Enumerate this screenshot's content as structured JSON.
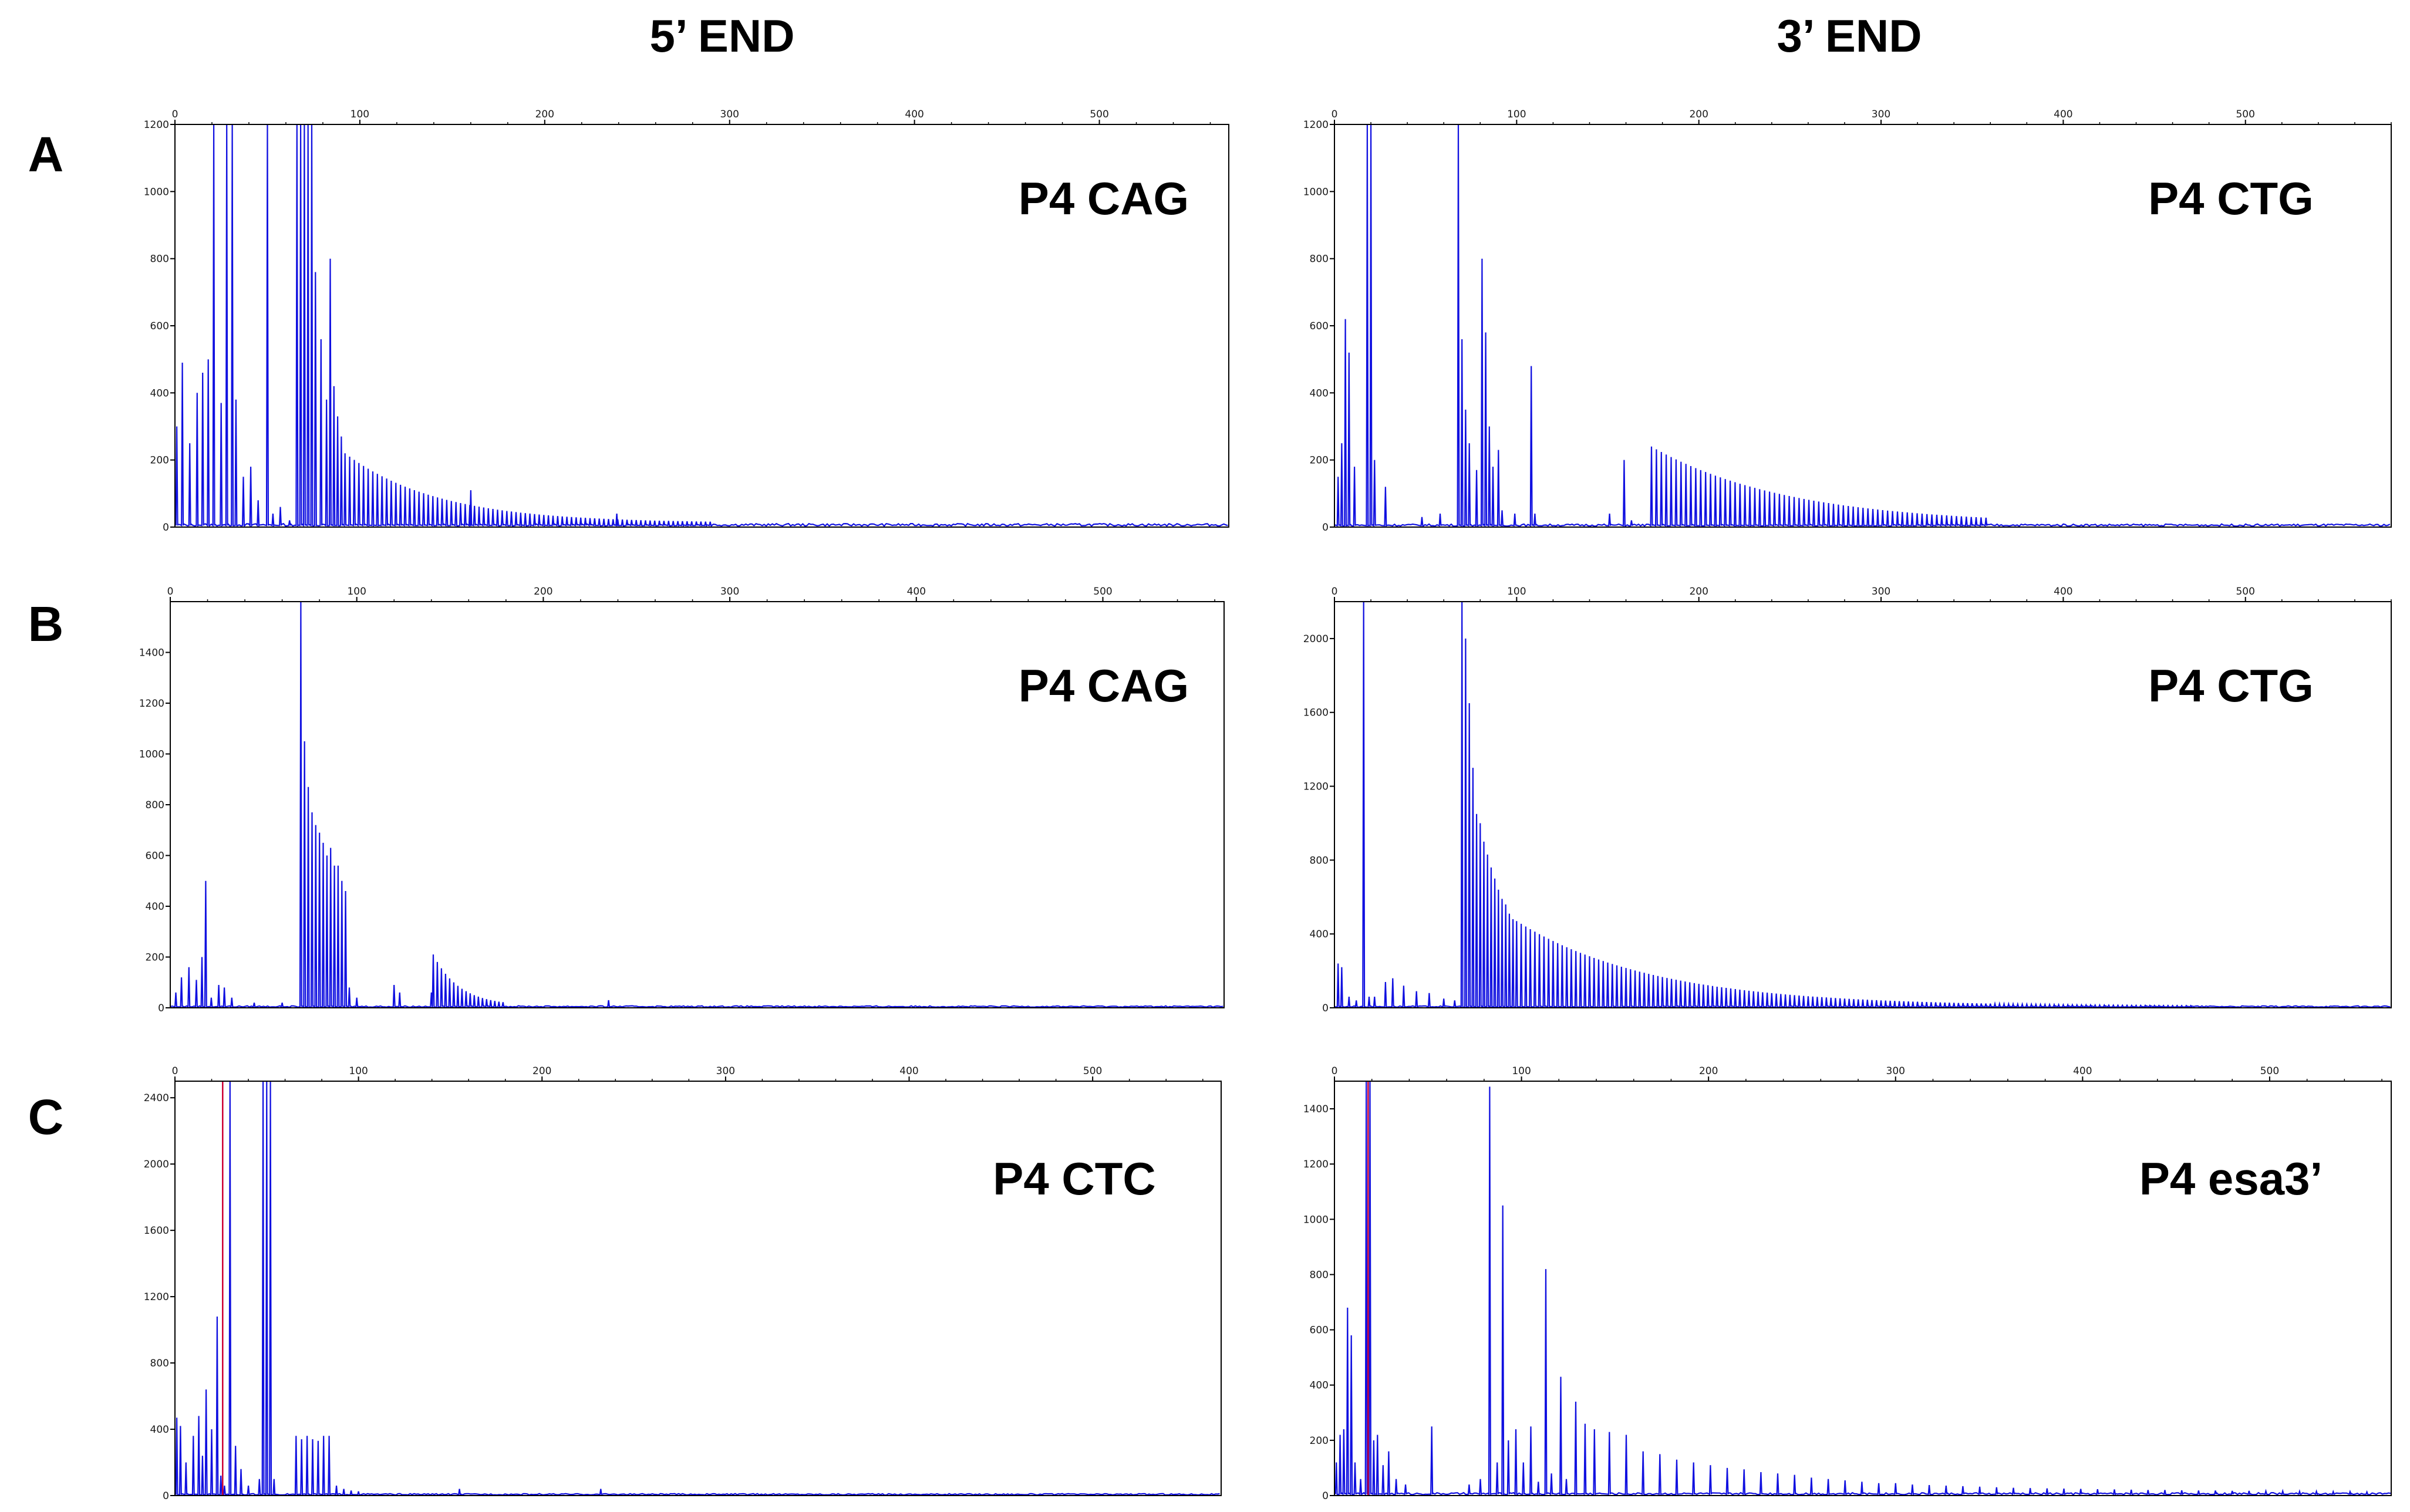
{
  "figure": {
    "column_headers": [
      "5’ END",
      "3’ END"
    ],
    "row_labels": [
      "A",
      "B",
      "C"
    ]
  },
  "colors": {
    "trace": "#1010e0",
    "marker": "#cc0033",
    "axis": "#000000"
  },
  "chart_data": [
    {
      "id": "A-left",
      "type": "line",
      "row": "A",
      "column": "5’ END",
      "sample_label": "P4 CAG",
      "xlim": [
        0,
        570
      ],
      "ylim": [
        0,
        1200
      ],
      "x_ticks": [
        0,
        100,
        200,
        300,
        400,
        500
      ],
      "y_ticks": [
        0,
        200,
        400,
        600,
        800,
        1000,
        1200
      ],
      "peaks": [
        [
          1,
          300
        ],
        [
          4,
          490
        ],
        [
          8,
          250
        ],
        [
          12,
          400
        ],
        [
          15,
          460
        ],
        [
          18,
          500
        ],
        [
          21,
          1400
        ],
        [
          25,
          370
        ],
        [
          28,
          1400
        ],
        [
          31,
          1400
        ],
        [
          33,
          380
        ],
        [
          37,
          150
        ],
        [
          41,
          180
        ],
        [
          45,
          80
        ],
        [
          50,
          1400
        ],
        [
          53,
          40
        ],
        [
          57,
          60
        ],
        [
          62,
          20
        ],
        [
          66,
          1400
        ],
        [
          68,
          1400
        ],
        [
          70,
          1300
        ],
        [
          72,
          1400
        ],
        [
          74,
          1400
        ],
        [
          76,
          760
        ],
        [
          79,
          560
        ],
        [
          82,
          380
        ],
        [
          84,
          800
        ],
        [
          86,
          420
        ],
        [
          88,
          330
        ],
        [
          90,
          270
        ]
      ],
      "ladder": {
        "start": 92,
        "end": 290,
        "step": 2.5,
        "amp_start": 220,
        "decay": 50,
        "floor": 12
      },
      "bumps": [
        [
          160,
          110
        ],
        [
          239,
          40
        ]
      ],
      "noise_level": 8,
      "markers": []
    },
    {
      "id": "A-right",
      "type": "line",
      "row": "A",
      "column": "3’ END",
      "sample_label": "P4 CTG",
      "xlim": [
        0,
        580
      ],
      "ylim": [
        0,
        1200
      ],
      "x_ticks": [
        0,
        100,
        200,
        300,
        400,
        500
      ],
      "y_ticks": [
        0,
        200,
        400,
        600,
        800,
        1000,
        1200
      ],
      "peaks": [
        [
          2,
          150
        ],
        [
          4,
          250
        ],
        [
          6,
          620
        ],
        [
          8,
          520
        ],
        [
          11,
          180
        ],
        [
          18,
          1400
        ],
        [
          20,
          1400
        ],
        [
          22,
          200
        ],
        [
          28,
          120
        ],
        [
          48,
          30
        ],
        [
          58,
          40
        ],
        [
          68,
          1200
        ],
        [
          70,
          560
        ],
        [
          72,
          350
        ],
        [
          74,
          250
        ],
        [
          78,
          170
        ],
        [
          81,
          800
        ],
        [
          83,
          580
        ],
        [
          85,
          300
        ],
        [
          87,
          180
        ],
        [
          90,
          230
        ],
        [
          92,
          50
        ],
        [
          99,
          40
        ],
        [
          108,
          480
        ],
        [
          110,
          40
        ],
        [
          151,
          40
        ],
        [
          159,
          200
        ],
        [
          163,
          20
        ]
      ],
      "ladder": {
        "start": 174,
        "end": 360,
        "step": 2.7,
        "amp_start": 240,
        "decay": 75,
        "floor": 8
      },
      "bumps": [],
      "noise_level": 7,
      "markers": []
    },
    {
      "id": "B-left",
      "type": "line",
      "row": "B",
      "column": "5’ END",
      "sample_label": "P4 CAG",
      "xlim": [
        0,
        565
      ],
      "ylim": [
        0,
        1600
      ],
      "x_ticks": [
        0,
        100,
        200,
        300,
        400,
        500
      ],
      "y_ticks": [
        0,
        200,
        400,
        600,
        800,
        1000,
        1200,
        1400
      ],
      "peaks": [
        [
          3,
          60
        ],
        [
          6,
          120
        ],
        [
          10,
          160
        ],
        [
          14,
          110
        ],
        [
          17,
          200
        ],
        [
          19,
          500
        ],
        [
          22,
          40
        ],
        [
          26,
          90
        ],
        [
          29,
          80
        ],
        [
          33,
          40
        ],
        [
          45,
          20
        ],
        [
          60,
          20
        ],
        [
          70,
          1600
        ],
        [
          72,
          1050
        ],
        [
          74,
          870
        ],
        [
          76,
          770
        ],
        [
          78,
          720
        ],
        [
          80,
          690
        ],
        [
          82,
          650
        ],
        [
          84,
          600
        ],
        [
          86,
          630
        ],
        [
          88,
          560
        ],
        [
          90,
          560
        ],
        [
          92,
          500
        ],
        [
          94,
          460
        ],
        [
          96,
          80
        ],
        [
          100,
          40
        ],
        [
          120,
          90
        ],
        [
          123,
          60
        ],
        [
          140,
          60
        ],
        [
          235,
          30
        ]
      ],
      "ladder": {
        "start": 141,
        "end": 180,
        "step": 2.2,
        "amp_start": 210,
        "decay": 14,
        "floor": 8
      },
      "bumps": [],
      "noise_level": 6,
      "markers": []
    },
    {
      "id": "B-right",
      "type": "line",
      "row": "B",
      "column": "3’ END",
      "sample_label": "P4 CTG",
      "xlim": [
        0,
        580
      ],
      "ylim": [
        0,
        2200
      ],
      "x_ticks": [
        0,
        100,
        200,
        300,
        400,
        500
      ],
      "y_ticks": [
        0,
        400,
        800,
        1200,
        1600,
        2000
      ],
      "peaks": [
        [
          2,
          240
        ],
        [
          4,
          220
        ],
        [
          8,
          60
        ],
        [
          12,
          40
        ],
        [
          16,
          2300
        ],
        [
          19,
          60
        ],
        [
          22,
          60
        ],
        [
          28,
          140
        ],
        [
          32,
          160
        ],
        [
          38,
          120
        ],
        [
          45,
          90
        ],
        [
          52,
          80
        ],
        [
          60,
          50
        ],
        [
          66,
          40
        ],
        [
          70,
          2300
        ],
        [
          72,
          2000
        ],
        [
          74,
          1650
        ],
        [
          76,
          1300
        ],
        [
          78,
          1050
        ],
        [
          80,
          1000
        ],
        [
          82,
          900
        ],
        [
          84,
          830
        ],
        [
          86,
          760
        ],
        [
          88,
          700
        ],
        [
          90,
          640
        ],
        [
          92,
          590
        ],
        [
          94,
          560
        ],
        [
          96,
          510
        ],
        [
          98,
          480
        ]
      ],
      "ladder": {
        "start": 100,
        "end": 470,
        "step": 2.5,
        "amp_start": 470,
        "decay": 75,
        "floor": 8
      },
      "bumps": [],
      "noise_level": 8,
      "markers": []
    },
    {
      "id": "C-left",
      "type": "line",
      "row": "C",
      "column": "5’ END",
      "sample_label": "P4 CTC",
      "xlim": [
        0,
        570
      ],
      "ylim": [
        0,
        2500
      ],
      "x_ticks": [
        0,
        100,
        200,
        300,
        400,
        500
      ],
      "y_ticks": [
        0,
        400,
        800,
        1200,
        1600,
        2000,
        2400
      ],
      "peaks": [
        [
          1,
          470
        ],
        [
          3,
          420
        ],
        [
          6,
          200
        ],
        [
          10,
          360
        ],
        [
          13,
          480
        ],
        [
          15,
          240
        ],
        [
          17,
          640
        ],
        [
          20,
          400
        ],
        [
          23,
          1080
        ],
        [
          25,
          120
        ],
        [
          27,
          60
        ],
        [
          30,
          2600
        ],
        [
          33,
          300
        ],
        [
          36,
          160
        ],
        [
          40,
          60
        ],
        [
          46,
          100
        ],
        [
          48,
          2600
        ],
        [
          50,
          2600
        ],
        [
          52,
          2600
        ],
        [
          54,
          100
        ],
        [
          66,
          360
        ],
        [
          69,
          340
        ],
        [
          72,
          360
        ],
        [
          75,
          340
        ],
        [
          78,
          330
        ],
        [
          81,
          360
        ],
        [
          84,
          360
        ],
        [
          88,
          60
        ],
        [
          92,
          40
        ],
        [
          96,
          30
        ],
        [
          100,
          25
        ],
        [
          155,
          40
        ],
        [
          232,
          40
        ]
      ],
      "ladder": null,
      "bumps": [],
      "noise_level": 9,
      "markers": [
        [
          26,
          "#cc0033"
        ]
      ]
    },
    {
      "id": "C-right",
      "type": "line",
      "row": "C",
      "column": "3’ END",
      "sample_label": "P4 esa3’",
      "xlim": [
        0,
        565
      ],
      "ylim": [
        0,
        1500
      ],
      "x_ticks": [
        0,
        100,
        200,
        300,
        400,
        500
      ],
      "y_ticks": [
        0,
        200,
        400,
        600,
        800,
        1000,
        1200,
        1400
      ],
      "peaks": [
        [
          1,
          120
        ],
        [
          3,
          220
        ],
        [
          5,
          240
        ],
        [
          7,
          680
        ],
        [
          9,
          580
        ],
        [
          11,
          120
        ],
        [
          14,
          60
        ],
        [
          17,
          1600
        ],
        [
          19,
          1600
        ],
        [
          21,
          200
        ],
        [
          23,
          220
        ],
        [
          26,
          110
        ],
        [
          29,
          160
        ],
        [
          33,
          60
        ],
        [
          38,
          40
        ],
        [
          52,
          250
        ],
        [
          72,
          40
        ],
        [
          78,
          60
        ],
        [
          83,
          1480
        ],
        [
          87,
          120
        ],
        [
          90,
          1050
        ],
        [
          93,
          200
        ],
        [
          97,
          240
        ],
        [
          101,
          120
        ],
        [
          105,
          250
        ],
        [
          109,
          50
        ],
        [
          113,
          820
        ],
        [
          116,
          80
        ],
        [
          121,
          430
        ],
        [
          124,
          60
        ],
        [
          129,
          340
        ],
        [
          134,
          260
        ],
        [
          139,
          240
        ],
        [
          147,
          230
        ],
        [
          156,
          220
        ],
        [
          165,
          160
        ],
        [
          174,
          150
        ],
        [
          183,
          130
        ],
        [
          192,
          120
        ],
        [
          201,
          110
        ],
        [
          210,
          100
        ],
        [
          219,
          95
        ],
        [
          228,
          85
        ],
        [
          237,
          80
        ],
        [
          246,
          75
        ],
        [
          255,
          65
        ],
        [
          264,
          60
        ],
        [
          273,
          55
        ],
        [
          282,
          50
        ],
        [
          291,
          45
        ],
        [
          300,
          45
        ],
        [
          309,
          40
        ],
        [
          318,
          38
        ],
        [
          327,
          36
        ],
        [
          336,
          34
        ],
        [
          345,
          32
        ],
        [
          354,
          30
        ],
        [
          363,
          28
        ],
        [
          372,
          27
        ],
        [
          381,
          26
        ],
        [
          390,
          25
        ],
        [
          399,
          24
        ],
        [
          408,
          23
        ],
        [
          417,
          22
        ],
        [
          426,
          21
        ],
        [
          435,
          20
        ],
        [
          444,
          20
        ],
        [
          453,
          19
        ],
        [
          462,
          18
        ],
        [
          471,
          18
        ],
        [
          480,
          17
        ],
        [
          489,
          17
        ],
        [
          498,
          16
        ],
        [
          507,
          16
        ],
        [
          516,
          15
        ],
        [
          525,
          15
        ],
        [
          534,
          14
        ],
        [
          543,
          14
        ],
        [
          552,
          13
        ]
      ],
      "ladder": null,
      "bumps": [],
      "noise_level": 8,
      "markers": [
        [
          18,
          "#cc0033"
        ]
      ]
    }
  ]
}
